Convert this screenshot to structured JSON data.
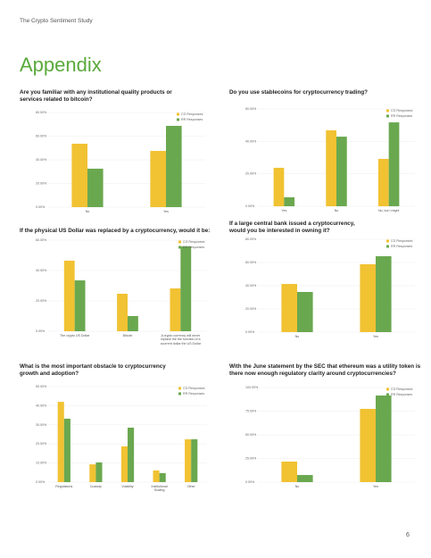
{
  "header": "The Crypto Sentiment Study",
  "title": "Appendix",
  "page_number": "6",
  "chart_data": [
    {
      "type": "bar",
      "title": "Are you familiar with any institutional quality products or services related to bitcoin?",
      "categories": [
        "No",
        "Yes"
      ],
      "series": [
        {
          "name": "CG Responses",
          "color": "#f1c232",
          "values": [
            53.6,
            47.5
          ]
        },
        {
          "name": "RR Responses",
          "color": "#6aa84f",
          "values": [
            32.5,
            68.7
          ]
        }
      ],
      "ylim": [
        0,
        80
      ],
      "yticks": [
        {
          "value": 0,
          "label": "0.00%"
        },
        {
          "value": 20,
          "label": "20.00%"
        },
        {
          "value": 40,
          "label": "40.00%"
        },
        {
          "value": 60,
          "label": "60.00%"
        },
        {
          "value": 80,
          "label": "80.00%"
        }
      ],
      "grid": true
    },
    {
      "type": "bar",
      "title": "Do you use stablecoins for cryptocurrency trading?",
      "categories": [
        "Yes",
        "No",
        "No, but I might"
      ],
      "series": [
        {
          "name": "CG Responses",
          "color": "#f1c232",
          "values": [
            23.7,
            46.8,
            29.2
          ]
        },
        {
          "name": "RR Responses",
          "color": "#6aa84f",
          "values": [
            5.5,
            42.9,
            51.7
          ]
        }
      ],
      "ylim": [
        0,
        60
      ],
      "yticks": [
        {
          "value": 0,
          "label": "0.00%"
        },
        {
          "value": 20,
          "label": "20.00%"
        },
        {
          "value": 40,
          "label": "40.00%"
        },
        {
          "value": 60,
          "label": "60.00%"
        }
      ],
      "grid": true
    },
    {
      "type": "bar",
      "title": "If the physical US Dollar was replaced by a cryptocurrency, would it be:",
      "categories": [
        "The crypto US Dollar",
        "Bitcoin",
        "A crypto currency will never replace the the function of a ccurrent dollar the US Dollar"
      ],
      "series": [
        {
          "name": "CG Responses",
          "color": "#f1c232",
          "values": [
            46.5,
            24.7,
            28.2
          ]
        },
        {
          "name": "RR Responses",
          "color": "#6aa84f",
          "values": [
            33.5,
            10,
            55.9
          ]
        }
      ],
      "ylim": [
        0,
        60
      ],
      "yticks": [
        {
          "value": 0,
          "label": "0.00%"
        },
        {
          "value": 20,
          "label": "20.00%"
        },
        {
          "value": 40,
          "label": "40.00%"
        },
        {
          "value": 60,
          "label": "60.00%"
        }
      ],
      "grid": true
    },
    {
      "type": "bar",
      "title": "If a large central bank issued a cryptocurrency, would you be interested in owning it?",
      "categories": [
        "No",
        "Yes"
      ],
      "series": [
        {
          "name": "CG Responses",
          "color": "#f1c232",
          "values": [
            41.5,
            58.5
          ]
        },
        {
          "name": "RR Responses",
          "color": "#6aa84f",
          "values": [
            34.6,
            65.4
          ]
        }
      ],
      "ylim": [
        0,
        80
      ],
      "yticks": [
        {
          "value": 0,
          "label": "0.00%"
        },
        {
          "value": 20,
          "label": "20.00%"
        },
        {
          "value": 40,
          "label": "40.00%"
        },
        {
          "value": 60,
          "label": "60.00%"
        },
        {
          "value": 80,
          "label": "80.00%"
        }
      ],
      "grid": true
    },
    {
      "type": "bar",
      "title": "What is the most important obstacle to cryptocurrency growth and adoption?",
      "categories": [
        "Regulations",
        "Custody",
        "Volatility",
        "Institutional Scaling",
        "Other"
      ],
      "series": [
        {
          "name": "CG Responses",
          "color": "#f1c232",
          "values": [
            42,
            9.3,
            18.7,
            6.1,
            22.4
          ]
        },
        {
          "name": "RR Responses",
          "color": "#6aa84f",
          "values": [
            33.2,
            10.3,
            28.5,
            4.7,
            22.4
          ]
        }
      ],
      "ylim": [
        0,
        50
      ],
      "yticks": [
        {
          "value": 0,
          "label": "0.00%"
        },
        {
          "value": 10,
          "label": "10.00%"
        },
        {
          "value": 20,
          "label": "20.00%"
        },
        {
          "value": 30,
          "label": "30.00%"
        },
        {
          "value": 40,
          "label": "40.00%"
        },
        {
          "value": 50,
          "label": "50.00%"
        }
      ],
      "grid": true
    },
    {
      "type": "bar",
      "title": "With the June statement by the SEC that ethereum was a utility token is there now enough regulatory clarity around cryptocurrencies?",
      "categories": [
        "No",
        "Yes"
      ],
      "series": [
        {
          "name": "CG Responses",
          "color": "#f1c232",
          "values": [
            21.7,
            77.4
          ]
        },
        {
          "name": "RR Responses",
          "color": "#6aa84f",
          "values": [
            7.5,
            91.5
          ]
        }
      ],
      "ylim": [
        0,
        100
      ],
      "yticks": [
        {
          "value": 0,
          "label": "0.00%"
        },
        {
          "value": 25,
          "label": "25.00%"
        },
        {
          "value": 50,
          "label": "50.00%"
        },
        {
          "value": 75,
          "label": "75.00%"
        },
        {
          "value": 100,
          "label": "100.00%"
        }
      ],
      "grid": true
    }
  ]
}
